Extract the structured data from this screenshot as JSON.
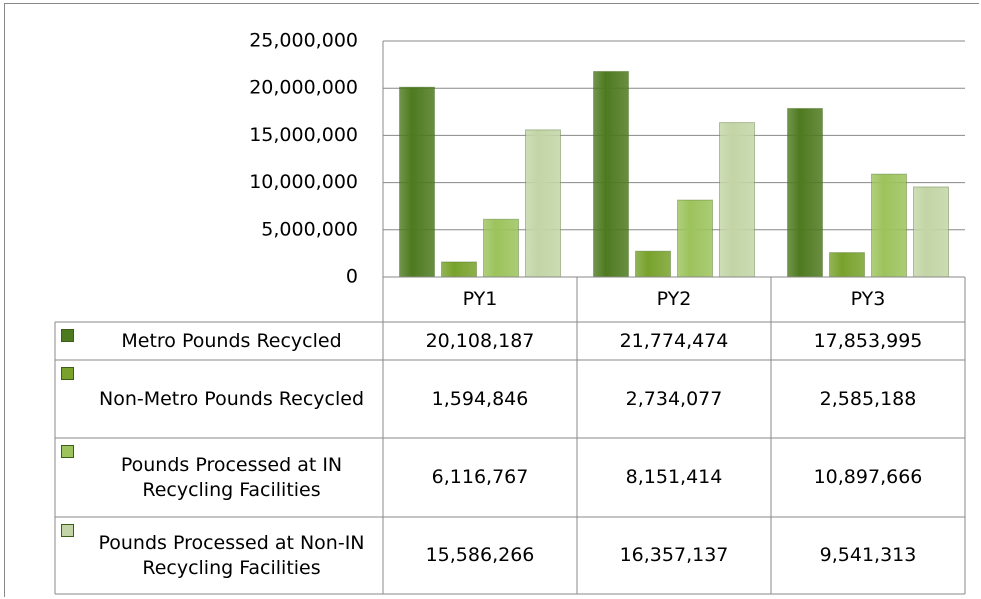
{
  "chart_data": {
    "type": "bar",
    "categories": [
      "PY1",
      "PY2",
      "PY3"
    ],
    "series": [
      {
        "name": "Metro Pounds Recycled",
        "color": "#4e7a1f",
        "values": [
          20108187,
          21774474,
          17853995
        ],
        "value_labels": [
          "20,108,187",
          "21,774,474",
          "17,853,995"
        ]
      },
      {
        "name": "Non-Metro Pounds Recycled",
        "color": "#78a22c",
        "values": [
          1594846,
          2734077,
          2585188
        ],
        "value_labels": [
          "1,594,846",
          "2,734,077",
          "2,585,188"
        ]
      },
      {
        "name": "Pounds Processed at IN Recycling Facilities",
        "color": "#9cc35c",
        "values": [
          6116767,
          8151414,
          10897666
        ],
        "value_labels": [
          "6,116,767",
          "8,151,414",
          "10,897,666"
        ]
      },
      {
        "name": "Pounds Processed at Non-IN Recycling Facilities",
        "color": "#c3d5a6",
        "values": [
          15586266,
          16357137,
          9541313
        ],
        "value_labels": [
          "15,586,266",
          "16,357,137",
          "9,541,313"
        ]
      }
    ],
    "ylim": [
      0,
      25000000
    ],
    "yticks": [
      0,
      {
        "value": 5000000,
        "label": "5,000,000"
      },
      {
        "value": 10000000,
        "label": "10,000,000"
      },
      {
        "value": 15000000,
        "label": "15,000,000"
      },
      {
        "value": 20000000,
        "label": "20,000,000"
      },
      {
        "value": 25000000,
        "label": "25,000,000"
      }
    ],
    "grid": true
  }
}
